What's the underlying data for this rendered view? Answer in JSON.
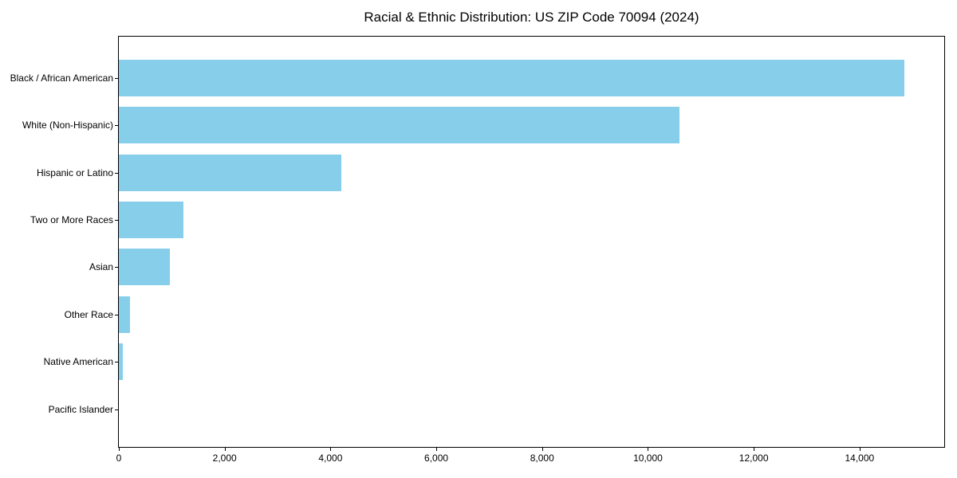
{
  "chart_data": {
    "type": "bar",
    "orientation": "horizontal",
    "title": "Racial & Ethnic Distribution: US ZIP Code 70094 (2024)",
    "categories": [
      "Black / African American",
      "White (Non-Hispanic)",
      "Hispanic or Latino",
      "Two or More Races",
      "Asian",
      "Other Race",
      "Native American",
      "Pacific Islander"
    ],
    "values": [
      14850,
      10600,
      4200,
      1220,
      970,
      210,
      75,
      0
    ],
    "xlabel": "",
    "ylabel": "",
    "xlim": [
      0,
      15600
    ],
    "x_ticks": [
      0,
      2000,
      4000,
      6000,
      8000,
      10000,
      12000,
      14000
    ],
    "x_tick_labels": [
      "0",
      "2,000",
      "4,000",
      "6,000",
      "8,000",
      "10,000",
      "12,000",
      "14,000"
    ],
    "bar_color": "#87CEEB",
    "spine_color": "#000000",
    "grid": false,
    "legend": false,
    "categories_order": "largest at top (y-axis inverted)"
  }
}
